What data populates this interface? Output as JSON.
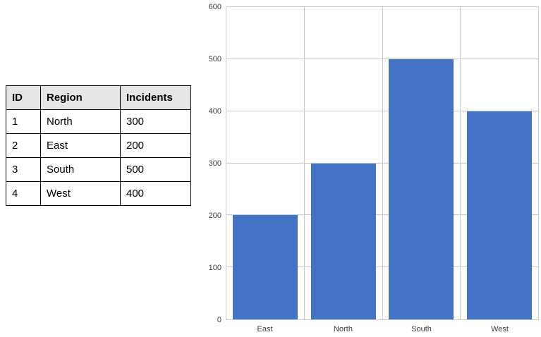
{
  "table": {
    "headers": [
      "ID",
      "Region",
      "Incidents"
    ],
    "rows": [
      [
        "1",
        "North",
        "300"
      ],
      [
        "2",
        "East",
        "200"
      ],
      [
        "3",
        "South",
        "500"
      ],
      [
        "4",
        "West",
        "400"
      ]
    ],
    "header_bg": "#e7e6e6",
    "border_color": "#000000"
  },
  "chart_data": {
    "type": "bar",
    "categories": [
      "East",
      "North",
      "South",
      "West"
    ],
    "values": [
      200,
      300,
      500,
      400
    ],
    "title": "",
    "xlabel": "",
    "ylabel": "",
    "ylim": [
      0,
      600
    ],
    "yticks": [
      0,
      100,
      200,
      300,
      400,
      500,
      600
    ],
    "bar_color": "#4472C4",
    "gridline_color": "#c9c9c9",
    "grid": true,
    "legend": "none"
  }
}
